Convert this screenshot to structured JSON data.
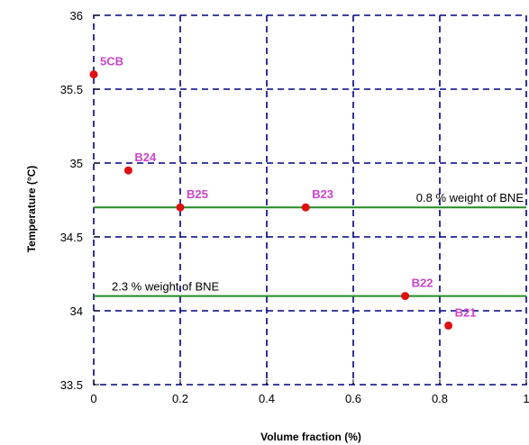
{
  "chart_data": {
    "type": "scatter",
    "title": "",
    "xlabel": "Volume fraction (%)",
    "ylabel": "Temperature (°C)",
    "xlim": [
      0,
      1
    ],
    "ylim": [
      33.5,
      36
    ],
    "x_ticks": [
      {
        "value": 0,
        "label": "0"
      },
      {
        "value": 0.2,
        "label": "0.2"
      },
      {
        "value": 0.4,
        "label": "0.4"
      },
      {
        "value": 0.6,
        "label": "0.6"
      },
      {
        "value": 0.8,
        "label": "0.8"
      },
      {
        "value": 1,
        "label": "1"
      }
    ],
    "y_ticks": [
      {
        "value": 33.5,
        "label": "33.5"
      },
      {
        "value": 34,
        "label": "34"
      },
      {
        "value": 34.5,
        "label": "34.5"
      },
      {
        "value": 35,
        "label": "35"
      },
      {
        "value": 35.5,
        "label": "35.5"
      },
      {
        "value": 36,
        "label": "36"
      }
    ],
    "grid": true,
    "points": [
      {
        "label": "5CB",
        "x": 0.0,
        "y": 35.6
      },
      {
        "label": "B24",
        "x": 0.08,
        "y": 34.95
      },
      {
        "label": "B25",
        "x": 0.2,
        "y": 34.7
      },
      {
        "label": "B23",
        "x": 0.49,
        "y": 34.7
      },
      {
        "label": "B22",
        "x": 0.72,
        "y": 34.1
      },
      {
        "label": "B21",
        "x": 0.82,
        "y": 33.9
      }
    ],
    "reference_lines": [
      {
        "y": 34.7,
        "label": "0.8 % weight of BNE"
      },
      {
        "y": 34.1,
        "label": "2.3 % weight of BNE"
      }
    ]
  },
  "colors": {
    "point": "#dd1111",
    "point_label": "#cc44cc",
    "grid": "#000080",
    "reference_line": "#228b22",
    "frame": "#000080"
  }
}
